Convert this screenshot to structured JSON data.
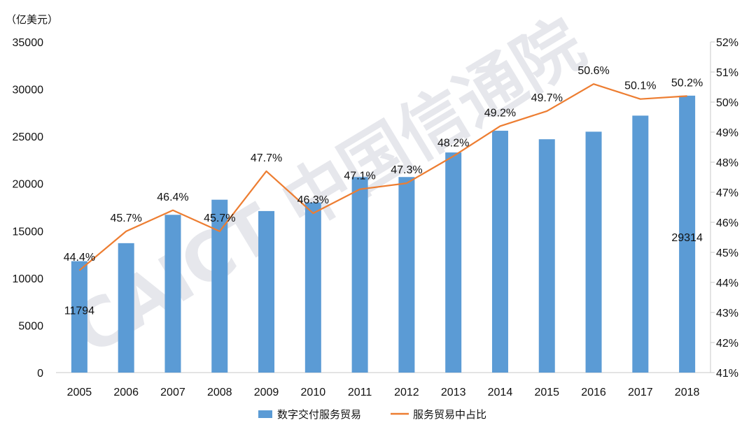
{
  "chart_data": {
    "type": "bar+line",
    "unit_label": "（亿美元）",
    "categories": [
      "2005",
      "2006",
      "2007",
      "2008",
      "2009",
      "2010",
      "2011",
      "2012",
      "2013",
      "2014",
      "2015",
      "2016",
      "2017",
      "2018"
    ],
    "series": [
      {
        "name": "数字交付服务贸易",
        "type": "bar",
        "axis": "left",
        "values": [
          11794,
          13700,
          16700,
          18300,
          17100,
          18000,
          20700,
          20700,
          23300,
          25600,
          24700,
          25500,
          27200,
          29314
        ]
      },
      {
        "name": "服务贸易中占比",
        "type": "line",
        "axis": "right",
        "values": [
          44.4,
          45.7,
          46.4,
          45.7,
          47.7,
          46.3,
          47.1,
          47.3,
          48.2,
          49.2,
          49.7,
          50.6,
          50.1,
          50.2
        ]
      }
    ],
    "bar_labels": [
      {
        "index": 0,
        "text": "11794"
      },
      {
        "index": 13,
        "text": "29314"
      }
    ],
    "line_labels": [
      "44.4%",
      "45.7%",
      "46.4%",
      "45.7%",
      "47.7%",
      "46.3%",
      "47.1%",
      "47.3%",
      "48.2%",
      "49.2%",
      "49.7%",
      "50.6%",
      "50.1%",
      "50.2%"
    ],
    "y_left": {
      "range": [
        0,
        35000
      ],
      "ticks": [
        "0",
        "5000",
        "10000",
        "15000",
        "20000",
        "25000",
        "30000",
        "35000"
      ]
    },
    "y_right": {
      "range": [
        41,
        52
      ],
      "ticks": [
        "41%",
        "42%",
        "43%",
        "44%",
        "45%",
        "46%",
        "47%",
        "48%",
        "49%",
        "50%",
        "51%",
        "52%"
      ]
    },
    "legend_position": "bottom",
    "grid": false,
    "watermark": "CAICT 中国信通院",
    "colors": {
      "bar": "#5b9bd5",
      "line": "#ed7d31"
    }
  }
}
